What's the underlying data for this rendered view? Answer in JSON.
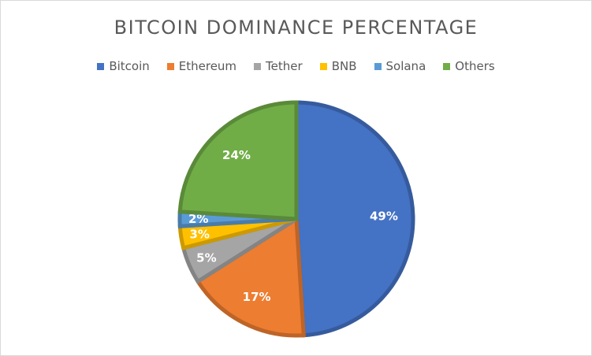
{
  "chart_data": {
    "type": "pie",
    "title": "BITCOIN DOMINANCE PERCENTAGE",
    "legend_position": "top",
    "categories": [
      "Bitcoin",
      "Ethereum",
      "Tether",
      "BNB",
      "Solana",
      "Others"
    ],
    "values": [
      49,
      17,
      5,
      3,
      2,
      24
    ],
    "labels": [
      "49%",
      "17%",
      "5%",
      "3%",
      "2%",
      "24%"
    ],
    "colors": [
      "#4472c4",
      "#ed7d31",
      "#a5a5a5",
      "#ffc000",
      "#5b9bd5",
      "#70ad47"
    ]
  }
}
